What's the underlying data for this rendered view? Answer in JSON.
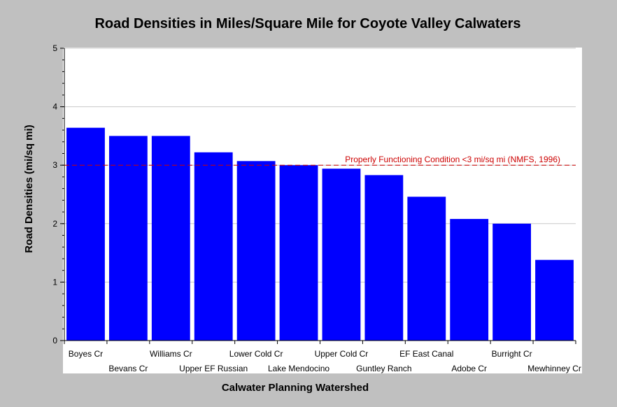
{
  "chart_data": {
    "type": "bar",
    "title": "Road Densities in Miles/Square Mile for Coyote Valley Calwaters",
    "xlabel": "Calwater Planning Watershed",
    "ylabel": "Road Densities (mi/sq mi)",
    "ylim": [
      0,
      5
    ],
    "yticks": [
      0,
      1,
      2,
      3,
      4,
      5
    ],
    "grid": true,
    "categories": [
      "Boyes Cr",
      "Bevans Cr",
      "Williams Cr",
      "Upper EF Russian",
      "Lower Cold Cr",
      "Lake Mendocino",
      "Upper Cold Cr",
      "Guntley Ranch",
      "EF East Canal",
      "Adobe Cr",
      "Burright Cr",
      "Mewhinney Cr"
    ],
    "values": [
      3.64,
      3.5,
      3.5,
      3.22,
      3.07,
      3.0,
      2.94,
      2.83,
      2.46,
      2.08,
      2.0,
      1.38
    ],
    "bar_color": "#0000ff",
    "reference_line": {
      "value": 3,
      "label": "Properly Functioning Condition <3 mi/sq mi (NMFS, 1996)",
      "color": "#cc0000"
    }
  }
}
